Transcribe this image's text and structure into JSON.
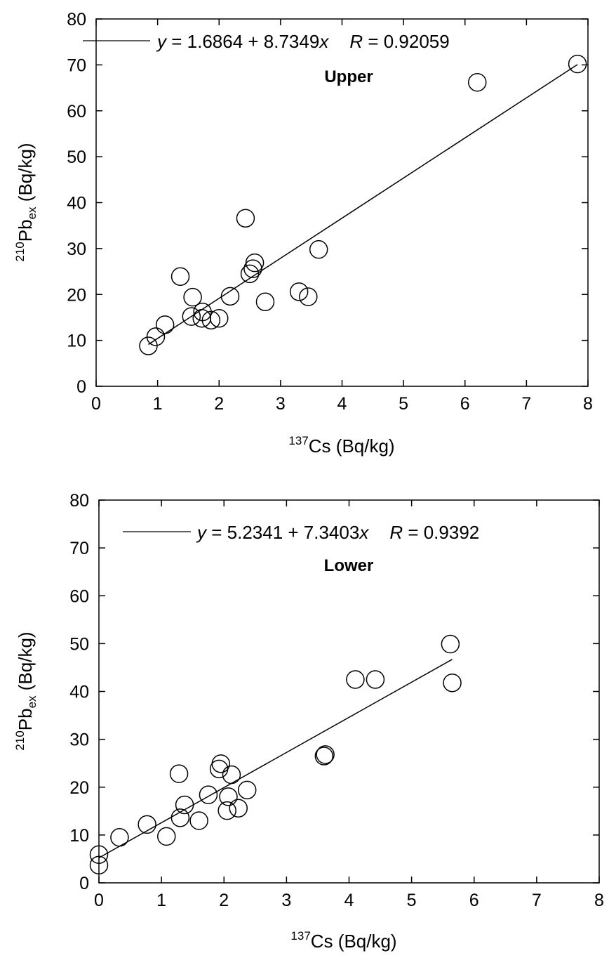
{
  "chart_data": [
    {
      "type": "scatter",
      "panel_label": "Upper",
      "xlabel_sup": "137",
      "xlabel_main": "Cs (Bq/kg)",
      "ylabel_sup": "210",
      "ylabel_main": "Pb",
      "ylabel_sub": "ex",
      "ylabel_unit": " (Bq/kg)",
      "xlim": [
        0,
        8
      ],
      "ylim": [
        0,
        80
      ],
      "xticks": [
        "0",
        "1",
        "2",
        "3",
        "4",
        "5",
        "6",
        "7",
        "8"
      ],
      "yticks": [
        "0",
        "10",
        "20",
        "30",
        "40",
        "50",
        "60",
        "70",
        "80"
      ],
      "grid": false,
      "legend_position": "top",
      "fit": {
        "eq_y": "y",
        "eq_body": " = 1.6864 + 8.7349",
        "eq_x": "x",
        "eq_r": "R",
        "eq_rval": " = 0.92059",
        "intercept": 1.6864,
        "slope": 8.7349,
        "x_range": [
          0.85,
          7.83
        ]
      },
      "points": [
        {
          "x": 0.85,
          "y": 8.8
        },
        {
          "x": 0.97,
          "y": 10.8
        },
        {
          "x": 1.12,
          "y": 13.4
        },
        {
          "x": 1.37,
          "y": 23.9
        },
        {
          "x": 1.57,
          "y": 19.4
        },
        {
          "x": 1.55,
          "y": 15.2
        },
        {
          "x": 1.73,
          "y": 16.2
        },
        {
          "x": 1.72,
          "y": 14.8
        },
        {
          "x": 1.87,
          "y": 14.4
        },
        {
          "x": 2.0,
          "y": 14.8
        },
        {
          "x": 2.18,
          "y": 19.6
        },
        {
          "x": 2.43,
          "y": 36.6
        },
        {
          "x": 2.5,
          "y": 24.5
        },
        {
          "x": 2.55,
          "y": 25.6
        },
        {
          "x": 2.58,
          "y": 26.9
        },
        {
          "x": 2.75,
          "y": 18.4
        },
        {
          "x": 3.3,
          "y": 20.6
        },
        {
          "x": 3.45,
          "y": 19.5
        },
        {
          "x": 3.62,
          "y": 29.8
        },
        {
          "x": 6.2,
          "y": 66.2
        },
        {
          "x": 7.83,
          "y": 70.2
        }
      ]
    },
    {
      "type": "scatter",
      "panel_label": "Lower",
      "xlabel_sup": "137",
      "xlabel_main": "Cs (Bq/kg)",
      "ylabel_sup": "210",
      "ylabel_main": "Pb",
      "ylabel_sub": "ex",
      "ylabel_unit": " (Bq/kg)",
      "xlim": [
        0,
        8
      ],
      "ylim": [
        0,
        80
      ],
      "xticks": [
        "0",
        "1",
        "2",
        "3",
        "4",
        "5",
        "6",
        "7",
        "8"
      ],
      "yticks": [
        "0",
        "10",
        "20",
        "30",
        "40",
        "50",
        "60",
        "70",
        "80"
      ],
      "grid": false,
      "legend_position": "top",
      "fit": {
        "eq_y": "y",
        "eq_body": " = 5.2341 + 7.3403",
        "eq_x": "x",
        "eq_r": "R",
        "eq_rval": " = 0.9392",
        "intercept": 5.2341,
        "slope": 7.3403,
        "x_range": [
          0.0,
          5.65
        ]
      },
      "points": [
        {
          "x": 0.0,
          "y": 5.9
        },
        {
          "x": 0.0,
          "y": 3.7
        },
        {
          "x": 0.33,
          "y": 9.5
        },
        {
          "x": 0.77,
          "y": 12.2
        },
        {
          "x": 1.08,
          "y": 9.7
        },
        {
          "x": 1.28,
          "y": 22.8
        },
        {
          "x": 1.3,
          "y": 13.6
        },
        {
          "x": 1.37,
          "y": 16.3
        },
        {
          "x": 1.6,
          "y": 13.0
        },
        {
          "x": 1.75,
          "y": 18.4
        },
        {
          "x": 1.92,
          "y": 23.8
        },
        {
          "x": 1.95,
          "y": 24.9
        },
        {
          "x": 2.05,
          "y": 15.1
        },
        {
          "x": 2.07,
          "y": 18.0
        },
        {
          "x": 2.12,
          "y": 22.6
        },
        {
          "x": 2.23,
          "y": 15.6
        },
        {
          "x": 2.37,
          "y": 19.4
        },
        {
          "x": 3.6,
          "y": 26.5
        },
        {
          "x": 3.62,
          "y": 26.8
        },
        {
          "x": 4.1,
          "y": 42.5
        },
        {
          "x": 4.42,
          "y": 42.5
        },
        {
          "x": 5.62,
          "y": 49.9
        },
        {
          "x": 5.65,
          "y": 41.8
        }
      ]
    }
  ]
}
